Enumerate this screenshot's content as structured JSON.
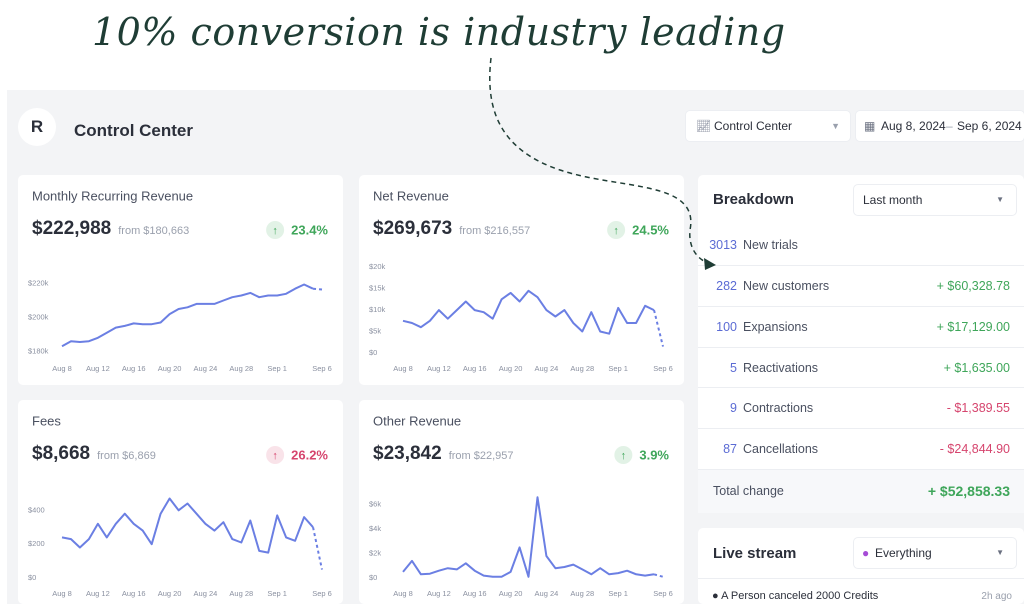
{
  "annotation": "10% conversion is industry leading",
  "header": {
    "logo": "R",
    "title": "Control Center",
    "view_select": "Control Center",
    "date_from": "Aug 8, 2024",
    "date_sep": "–",
    "date_to": "Sep 6, 2024"
  },
  "cards": [
    {
      "title": "Monthly Recurring Revenue",
      "value": "$222,988",
      "from": "from $180,663",
      "change": "23.4%",
      "color": "#3fa65a",
      "chart": {
        "type": "line",
        "color": "#6b7fe3",
        "categories": [
          "Aug 8",
          null,
          null,
          null,
          "Aug 12",
          null,
          null,
          null,
          "Aug 16",
          null,
          null,
          null,
          "Aug 20",
          null,
          null,
          null,
          "Aug 24",
          null,
          null,
          null,
          "Aug 28",
          null,
          null,
          null,
          "Sep 1",
          null,
          null,
          null,
          null,
          "Sep 6"
        ],
        "values": [
          183000,
          186000,
          185500,
          186000,
          188000,
          191000,
          194000,
          195000,
          196500,
          196000,
          196000,
          197000,
          202000,
          205000,
          206000,
          208000,
          208000,
          208000,
          210000,
          212000,
          213000,
          214500,
          212000,
          213000,
          213000,
          214000,
          217000,
          219500,
          217000,
          216500
        ],
        "ylim": [
          179000,
          231000
        ],
        "yticks": [
          {
            "value": 180000,
            "label": "$180k"
          },
          {
            "value": 200000,
            "label": "$200k"
          },
          {
            "value": 220000,
            "label": "$220k"
          }
        ]
      }
    },
    {
      "title": "Net Revenue",
      "value": "$269,673",
      "from": "from $216,557",
      "change": "24.5%",
      "color": "#3fa65a",
      "chart": {
        "type": "line",
        "color": "#6b7fe3",
        "categories": [
          "Aug 8",
          null,
          null,
          null,
          "Aug 12",
          null,
          null,
          null,
          "Aug 16",
          null,
          null,
          null,
          "Aug 20",
          null,
          null,
          null,
          "Aug 24",
          null,
          null,
          null,
          "Aug 28",
          null,
          null,
          null,
          "Sep 1",
          null,
          null,
          null,
          null,
          "Sep 6"
        ],
        "values": [
          7500,
          7000,
          6000,
          7500,
          10000,
          8000,
          10000,
          12000,
          10000,
          9500,
          8000,
          12500,
          14000,
          12000,
          14500,
          13000,
          10000,
          8500,
          10000,
          7000,
          5000,
          9500,
          5000,
          4500,
          10500,
          7000,
          7000,
          11000,
          10000,
          1500
        ],
        "ylim": [
          0,
          20500
        ],
        "yticks": [
          {
            "value": 0,
            "label": "$0"
          },
          {
            "value": 5000,
            "label": "$5k"
          },
          {
            "value": 10000,
            "label": "$10k"
          },
          {
            "value": 15000,
            "label": "$15k"
          },
          {
            "value": 20000,
            "label": "$20k"
          }
        ]
      }
    },
    {
      "title": "Fees",
      "value": "$8,668",
      "from": "from $6,869",
      "change": "26.2%",
      "color": "#d6456e",
      "chart": {
        "type": "line",
        "color": "#6b7fe3",
        "categories": [
          "Aug 8",
          null,
          null,
          null,
          "Aug 12",
          null,
          null,
          null,
          "Aug 16",
          null,
          null,
          null,
          "Aug 20",
          null,
          null,
          null,
          "Aug 24",
          null,
          null,
          null,
          "Aug 28",
          null,
          null,
          null,
          "Sep 1",
          null,
          null,
          null,
          null,
          "Sep 6"
        ],
        "values": [
          240,
          230,
          180,
          230,
          320,
          240,
          320,
          380,
          320,
          280,
          200,
          380,
          470,
          400,
          440,
          380,
          320,
          280,
          330,
          230,
          210,
          340,
          160,
          150,
          370,
          240,
          220,
          360,
          300,
          50
        ],
        "ylim": [
          0,
          520
        ],
        "yticks": [
          {
            "value": 0,
            "label": "$0"
          },
          {
            "value": 200,
            "label": "$200"
          },
          {
            "value": 400,
            "label": "$400"
          }
        ]
      }
    },
    {
      "title": "Other Revenue",
      "value": "$23,842",
      "from": "from $22,957",
      "change": "3.9%",
      "color": "#3fa65a",
      "chart": {
        "type": "line",
        "color": "#6b7fe3",
        "categories": [
          "Aug 8",
          null,
          null,
          null,
          "Aug 12",
          null,
          null,
          null,
          "Aug 16",
          null,
          null,
          null,
          "Aug 20",
          null,
          null,
          null,
          "Aug 24",
          null,
          null,
          null,
          "Aug 28",
          null,
          null,
          null,
          "Sep 1",
          null,
          null,
          null,
          null,
          "Sep 6"
        ],
        "values": [
          500,
          1400,
          300,
          350,
          600,
          800,
          700,
          1200,
          600,
          200,
          100,
          100,
          500,
          2500,
          100,
          6600,
          1800,
          800,
          900,
          1100,
          700,
          300,
          800,
          300,
          400,
          600,
          300,
          200,
          300,
          100
        ],
        "ylim": [
          0,
          7200
        ],
        "yticks": [
          {
            "value": 0,
            "label": "$0"
          },
          {
            "value": 2000,
            "label": "$2k"
          },
          {
            "value": 4000,
            "label": "$4k"
          },
          {
            "value": 6000,
            "label": "$6k"
          }
        ]
      }
    }
  ],
  "breakdown": {
    "title": "Breakdown",
    "period": "Last month",
    "rows": [
      {
        "count": 3013,
        "label": "New trials"
      },
      {
        "count": 282,
        "label": "New customers",
        "amount": "+ $60,328.78"
      },
      {
        "count": 100,
        "label": "Expansions",
        "amount": "+ $17,129.00"
      },
      {
        "count": 5,
        "label": "Reactivations",
        "amount": "+ $1,635.00"
      },
      {
        "count": 9,
        "label": "Contractions",
        "amount": "- $1,389.55"
      },
      {
        "count": 87,
        "label": "Cancellations",
        "amount": "- $24,844.90"
      }
    ],
    "total": {
      "label": "Total change",
      "amount": "+ $52,858.33"
    }
  },
  "live_stream": {
    "title": "Live stream",
    "filter": "Everything",
    "events": [
      {
        "text": "A Person canceled 2000 Credits",
        "time": "2h ago"
      }
    ]
  }
}
